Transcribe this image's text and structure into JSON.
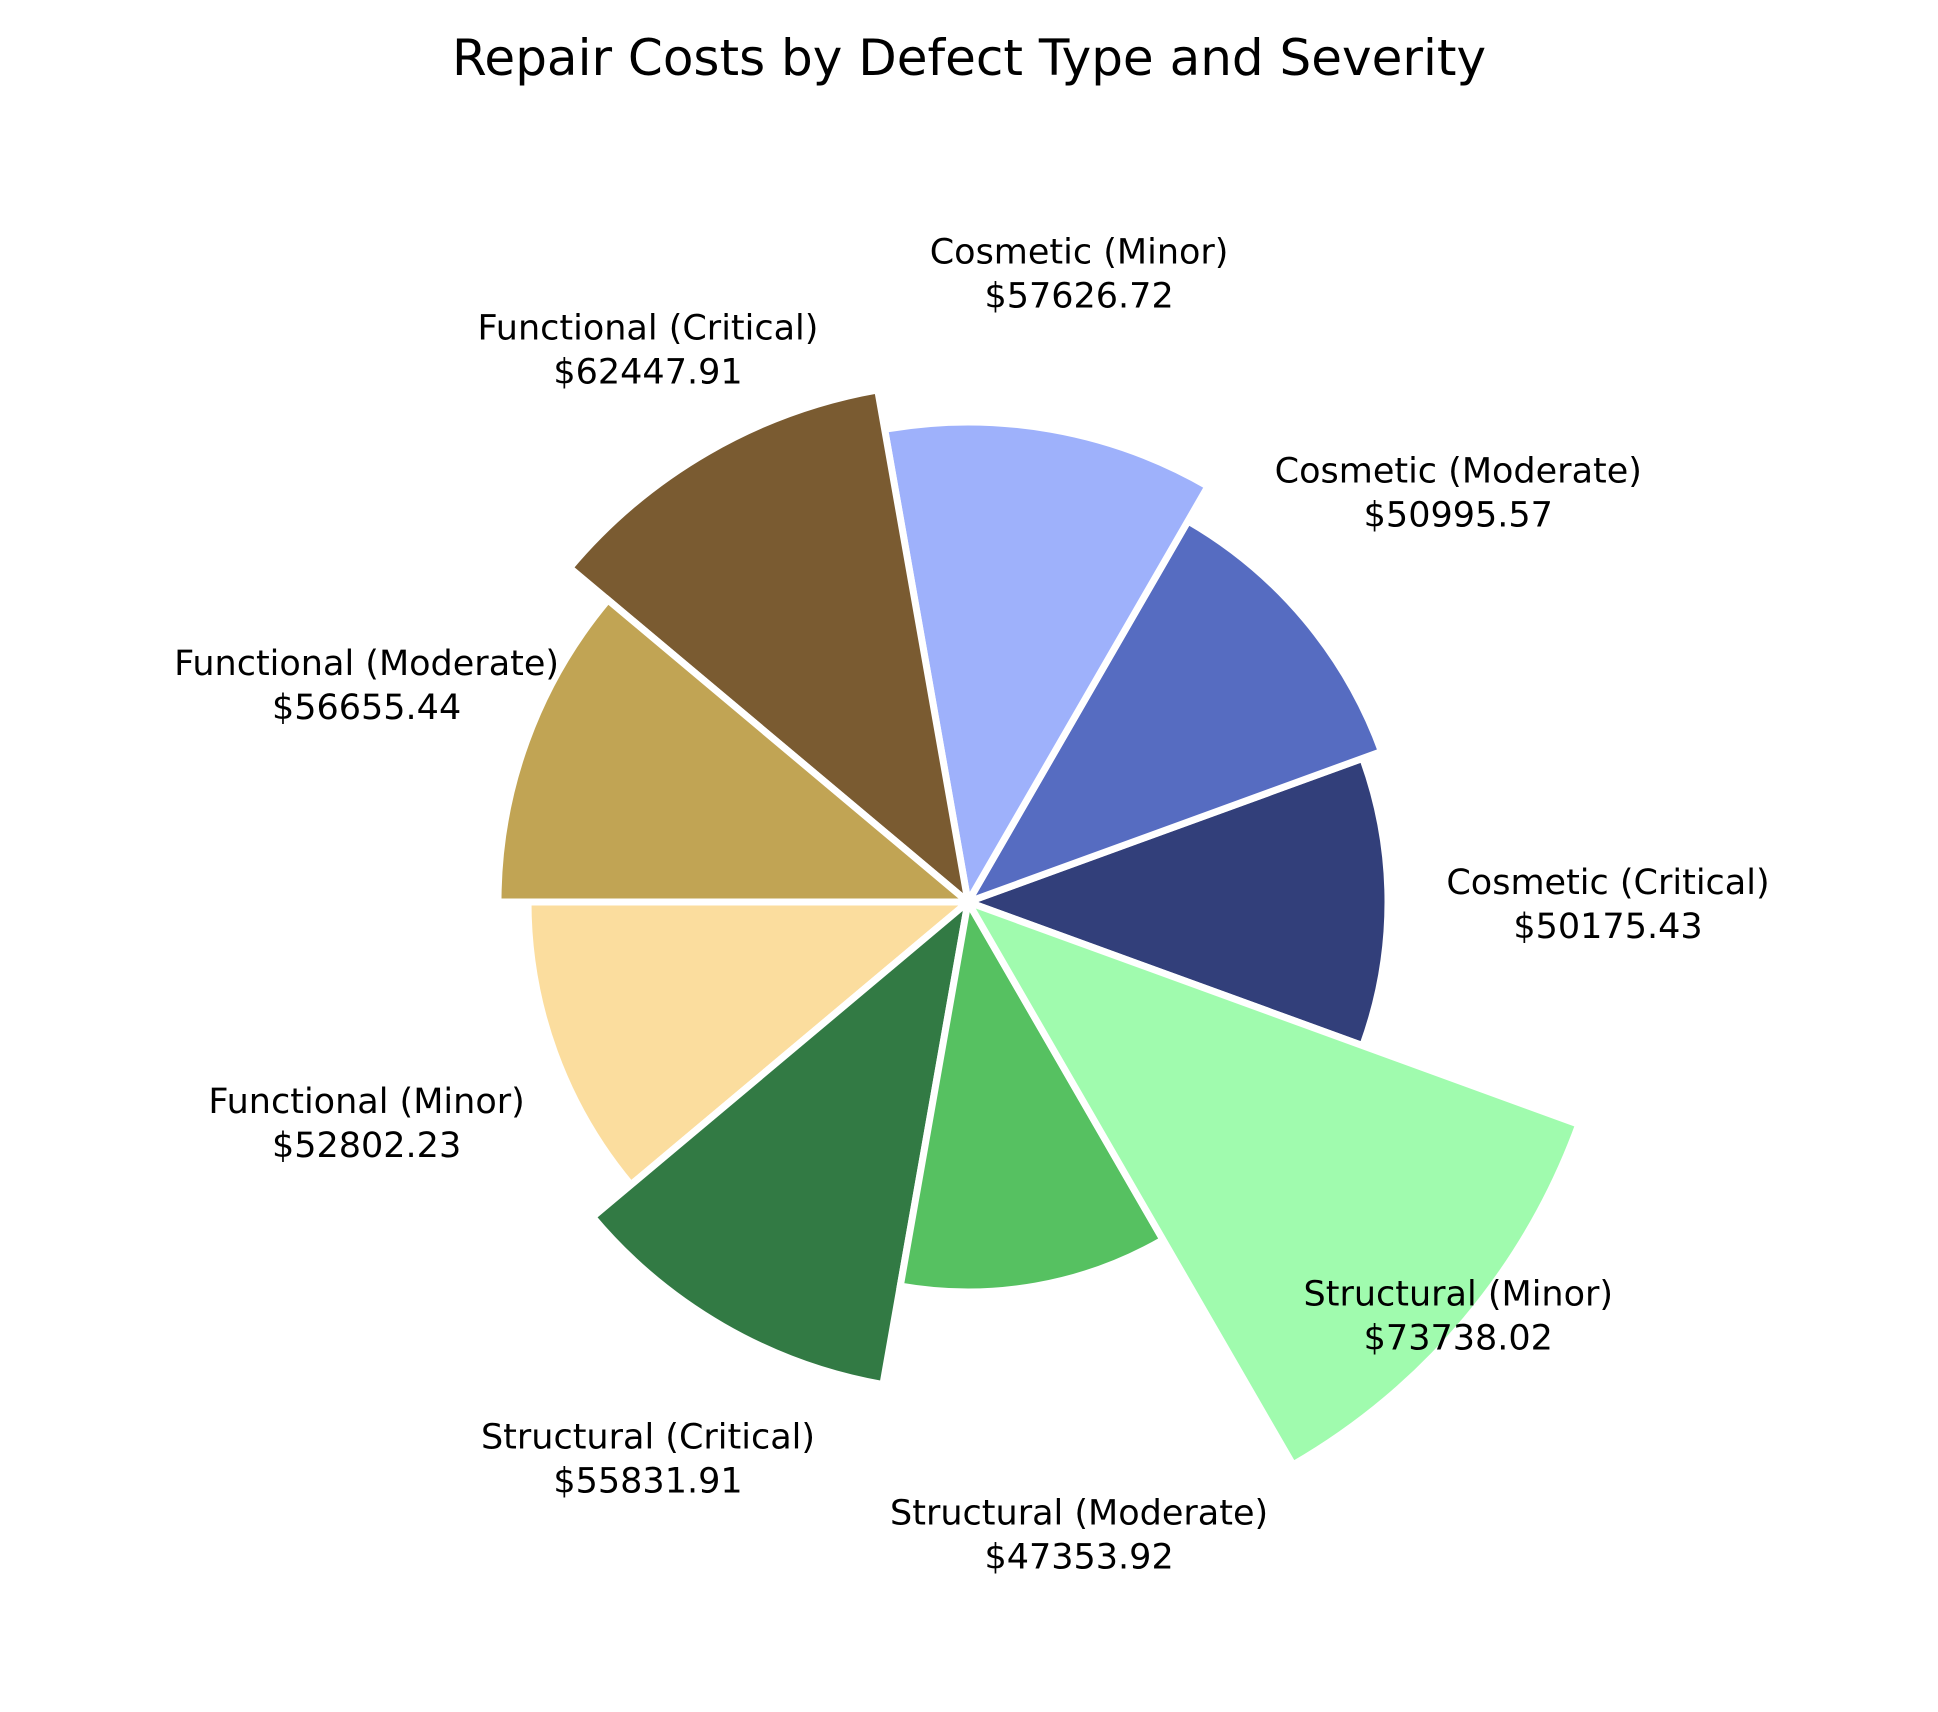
{
  "chart_data": {
    "type": "pie",
    "title": "Repair Costs by Defect Type and Severity",
    "slices": [
      {
        "name": "Cosmetic (Critical)",
        "value_label": "$50175.43",
        "value": 50175.43,
        "color": "#323f7a",
        "radial": 0.42
      },
      {
        "name": "Cosmetic (Moderate)",
        "value_label": "$50995.57",
        "value": 50995.57,
        "color": "#566cc1",
        "radial": 0.44
      },
      {
        "name": "Cosmetic (Minor)",
        "value_label": "$57626.72",
        "value": 57626.72,
        "color": "#9eb1fb",
        "radial": 0.48
      },
      {
        "name": "Functional (Critical)",
        "value_label": "$62447.91",
        "value": 62447.91,
        "color": "#7a5b31",
        "radial": 0.52
      },
      {
        "name": "Functional (Moderate)",
        "value_label": "$56655.44",
        "value": 56655.44,
        "color": "#c1a454",
        "radial": 0.47
      },
      {
        "name": "Functional (Minor)",
        "value_label": "$52802.23",
        "value": 52802.23,
        "color": "#fbdd9e",
        "radial": 0.44
      },
      {
        "name": "Structural (Critical)",
        "value_label": "$55831.91",
        "value": 55831.91,
        "color": "#327a44",
        "radial": 0.49
      },
      {
        "name": "Structural (Moderate)",
        "value_label": "$47353.92",
        "value": 47353.92,
        "color": "#56c161",
        "radial": 0.39
      },
      {
        "name": "Structural (Minor)",
        "value_label": "$73738.02",
        "value": 73738.02,
        "color": "#a0fbae",
        "radial": 0.65
      }
    ]
  }
}
